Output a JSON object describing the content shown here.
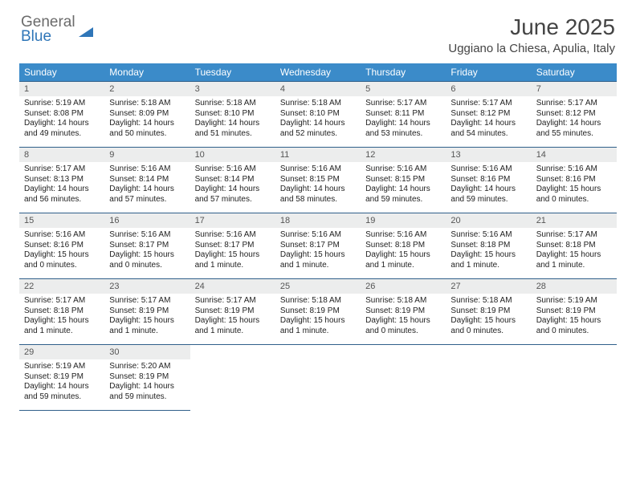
{
  "logo": {
    "line1": "General",
    "line2": "Blue"
  },
  "title": "June 2025",
  "subtitle": "Uggiano la Chiesa, Apulia, Italy",
  "colors": {
    "header_bg": "#3b8bc9",
    "border": "#2f5f8a",
    "daynum_bg": "#eceded",
    "logo_gray": "#6b6b6b",
    "logo_blue": "#2f76b8"
  },
  "day_names": [
    "Sunday",
    "Monday",
    "Tuesday",
    "Wednesday",
    "Thursday",
    "Friday",
    "Saturday"
  ],
  "weeks": [
    [
      {
        "n": "1",
        "sr": "Sunrise: 5:19 AM",
        "ss": "Sunset: 8:08 PM",
        "d1": "Daylight: 14 hours",
        "d2": "and 49 minutes."
      },
      {
        "n": "2",
        "sr": "Sunrise: 5:18 AM",
        "ss": "Sunset: 8:09 PM",
        "d1": "Daylight: 14 hours",
        "d2": "and 50 minutes."
      },
      {
        "n": "3",
        "sr": "Sunrise: 5:18 AM",
        "ss": "Sunset: 8:10 PM",
        "d1": "Daylight: 14 hours",
        "d2": "and 51 minutes."
      },
      {
        "n": "4",
        "sr": "Sunrise: 5:18 AM",
        "ss": "Sunset: 8:10 PM",
        "d1": "Daylight: 14 hours",
        "d2": "and 52 minutes."
      },
      {
        "n": "5",
        "sr": "Sunrise: 5:17 AM",
        "ss": "Sunset: 8:11 PM",
        "d1": "Daylight: 14 hours",
        "d2": "and 53 minutes."
      },
      {
        "n": "6",
        "sr": "Sunrise: 5:17 AM",
        "ss": "Sunset: 8:12 PM",
        "d1": "Daylight: 14 hours",
        "d2": "and 54 minutes."
      },
      {
        "n": "7",
        "sr": "Sunrise: 5:17 AM",
        "ss": "Sunset: 8:12 PM",
        "d1": "Daylight: 14 hours",
        "d2": "and 55 minutes."
      }
    ],
    [
      {
        "n": "8",
        "sr": "Sunrise: 5:17 AM",
        "ss": "Sunset: 8:13 PM",
        "d1": "Daylight: 14 hours",
        "d2": "and 56 minutes."
      },
      {
        "n": "9",
        "sr": "Sunrise: 5:16 AM",
        "ss": "Sunset: 8:14 PM",
        "d1": "Daylight: 14 hours",
        "d2": "and 57 minutes."
      },
      {
        "n": "10",
        "sr": "Sunrise: 5:16 AM",
        "ss": "Sunset: 8:14 PM",
        "d1": "Daylight: 14 hours",
        "d2": "and 57 minutes."
      },
      {
        "n": "11",
        "sr": "Sunrise: 5:16 AM",
        "ss": "Sunset: 8:15 PM",
        "d1": "Daylight: 14 hours",
        "d2": "and 58 minutes."
      },
      {
        "n": "12",
        "sr": "Sunrise: 5:16 AM",
        "ss": "Sunset: 8:15 PM",
        "d1": "Daylight: 14 hours",
        "d2": "and 59 minutes."
      },
      {
        "n": "13",
        "sr": "Sunrise: 5:16 AM",
        "ss": "Sunset: 8:16 PM",
        "d1": "Daylight: 14 hours",
        "d2": "and 59 minutes."
      },
      {
        "n": "14",
        "sr": "Sunrise: 5:16 AM",
        "ss": "Sunset: 8:16 PM",
        "d1": "Daylight: 15 hours",
        "d2": "and 0 minutes."
      }
    ],
    [
      {
        "n": "15",
        "sr": "Sunrise: 5:16 AM",
        "ss": "Sunset: 8:16 PM",
        "d1": "Daylight: 15 hours",
        "d2": "and 0 minutes."
      },
      {
        "n": "16",
        "sr": "Sunrise: 5:16 AM",
        "ss": "Sunset: 8:17 PM",
        "d1": "Daylight: 15 hours",
        "d2": "and 0 minutes."
      },
      {
        "n": "17",
        "sr": "Sunrise: 5:16 AM",
        "ss": "Sunset: 8:17 PM",
        "d1": "Daylight: 15 hours",
        "d2": "and 1 minute."
      },
      {
        "n": "18",
        "sr": "Sunrise: 5:16 AM",
        "ss": "Sunset: 8:17 PM",
        "d1": "Daylight: 15 hours",
        "d2": "and 1 minute."
      },
      {
        "n": "19",
        "sr": "Sunrise: 5:16 AM",
        "ss": "Sunset: 8:18 PM",
        "d1": "Daylight: 15 hours",
        "d2": "and 1 minute."
      },
      {
        "n": "20",
        "sr": "Sunrise: 5:16 AM",
        "ss": "Sunset: 8:18 PM",
        "d1": "Daylight: 15 hours",
        "d2": "and 1 minute."
      },
      {
        "n": "21",
        "sr": "Sunrise: 5:17 AM",
        "ss": "Sunset: 8:18 PM",
        "d1": "Daylight: 15 hours",
        "d2": "and 1 minute."
      }
    ],
    [
      {
        "n": "22",
        "sr": "Sunrise: 5:17 AM",
        "ss": "Sunset: 8:18 PM",
        "d1": "Daylight: 15 hours",
        "d2": "and 1 minute."
      },
      {
        "n": "23",
        "sr": "Sunrise: 5:17 AM",
        "ss": "Sunset: 8:19 PM",
        "d1": "Daylight: 15 hours",
        "d2": "and 1 minute."
      },
      {
        "n": "24",
        "sr": "Sunrise: 5:17 AM",
        "ss": "Sunset: 8:19 PM",
        "d1": "Daylight: 15 hours",
        "d2": "and 1 minute."
      },
      {
        "n": "25",
        "sr": "Sunrise: 5:18 AM",
        "ss": "Sunset: 8:19 PM",
        "d1": "Daylight: 15 hours",
        "d2": "and 1 minute."
      },
      {
        "n": "26",
        "sr": "Sunrise: 5:18 AM",
        "ss": "Sunset: 8:19 PM",
        "d1": "Daylight: 15 hours",
        "d2": "and 0 minutes."
      },
      {
        "n": "27",
        "sr": "Sunrise: 5:18 AM",
        "ss": "Sunset: 8:19 PM",
        "d1": "Daylight: 15 hours",
        "d2": "and 0 minutes."
      },
      {
        "n": "28",
        "sr": "Sunrise: 5:19 AM",
        "ss": "Sunset: 8:19 PM",
        "d1": "Daylight: 15 hours",
        "d2": "and 0 minutes."
      }
    ],
    [
      {
        "n": "29",
        "sr": "Sunrise: 5:19 AM",
        "ss": "Sunset: 8:19 PM",
        "d1": "Daylight: 14 hours",
        "d2": "and 59 minutes."
      },
      {
        "n": "30",
        "sr": "Sunrise: 5:20 AM",
        "ss": "Sunset: 8:19 PM",
        "d1": "Daylight: 14 hours",
        "d2": "and 59 minutes."
      },
      null,
      null,
      null,
      null,
      null
    ]
  ]
}
